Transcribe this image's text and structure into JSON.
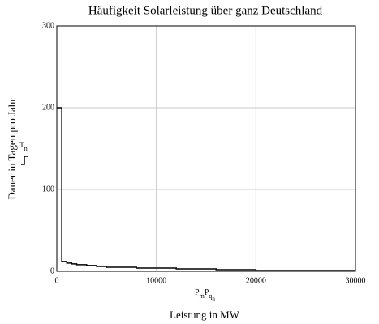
{
  "chart_data": {
    "type": "step",
    "title": "Häufigkeit Solarleistung über ganz Deutschland",
    "ylabel": "Dauer in Tagen pro Jahr",
    "xlabel": "Leistung in MW",
    "y_trace": {
      "base": "T",
      "sub": "n"
    },
    "x_trace": [
      {
        "base": "P",
        "sub": "m"
      },
      {
        "base": "P",
        "sub": "q",
        "subsub": "n"
      }
    ],
    "x": [
      0,
      500,
      1000,
      1500,
      2000,
      3000,
      4000,
      5000,
      6000,
      8000,
      10000,
      12000,
      14000,
      16000,
      18000,
      20000,
      30000
    ],
    "values": [
      200,
      12,
      10,
      9,
      8,
      7,
      6,
      5,
      5,
      4,
      4,
      3,
      3,
      2,
      2,
      1,
      1
    ],
    "color": "#000000",
    "xlim": [
      0,
      30000
    ],
    "xticks": [
      0,
      10000,
      20000,
      30000
    ],
    "ylim": [
      0,
      300
    ],
    "yticks": [
      0,
      100,
      200,
      300
    ],
    "grid": true
  }
}
